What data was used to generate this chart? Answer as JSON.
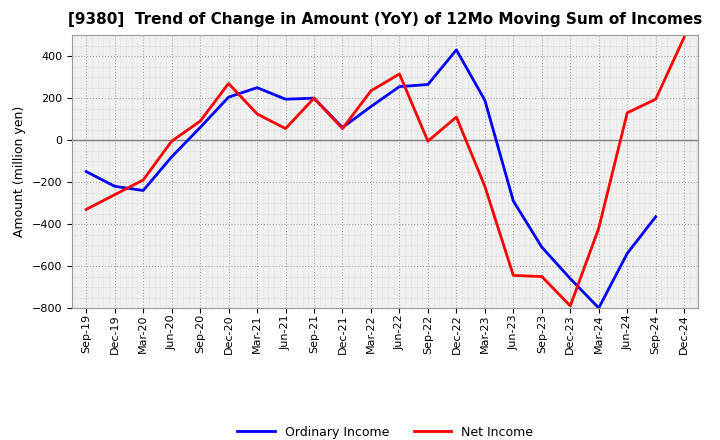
{
  "title": "[9380]  Trend of Change in Amount (YoY) of 12Mo Moving Sum of Incomes",
  "ylabel": "Amount (million yen)",
  "x_labels": [
    "Sep-19",
    "Dec-19",
    "Mar-20",
    "Jun-20",
    "Sep-20",
    "Dec-20",
    "Mar-21",
    "Jun-21",
    "Sep-21",
    "Dec-21",
    "Mar-22",
    "Jun-22",
    "Sep-22",
    "Dec-22",
    "Mar-23",
    "Jun-23",
    "Sep-23",
    "Dec-23",
    "Mar-24",
    "Jun-24",
    "Sep-24",
    "Dec-24"
  ],
  "ordinary_income": [
    -150,
    -220,
    -240,
    -80,
    60,
    205,
    250,
    195,
    200,
    60,
    160,
    255,
    265,
    430,
    190,
    -290,
    -510,
    -660,
    -800,
    -540,
    -365,
    null
  ],
  "net_income": [
    -330,
    -260,
    -190,
    -5,
    90,
    270,
    125,
    55,
    200,
    55,
    235,
    315,
    -5,
    110,
    -220,
    -645,
    -650,
    -790,
    -420,
    130,
    195,
    490
  ],
  "ylim": [
    -800,
    500
  ],
  "yticks": [
    -800,
    -600,
    -400,
    -200,
    0,
    200,
    400
  ],
  "ordinary_color": "#0000FF",
  "net_color": "#FF0000",
  "outer_bg": "#FFFFFF",
  "plot_bg": "#F0F0F0",
  "grid_color": "#AAAAAA",
  "zero_line_color": "#808080",
  "legend_ordinary": "Ordinary Income",
  "legend_net": "Net Income",
  "title_fontsize": 11,
  "ylabel_fontsize": 9,
  "tick_fontsize": 8,
  "legend_fontsize": 9,
  "linewidth": 2.0
}
